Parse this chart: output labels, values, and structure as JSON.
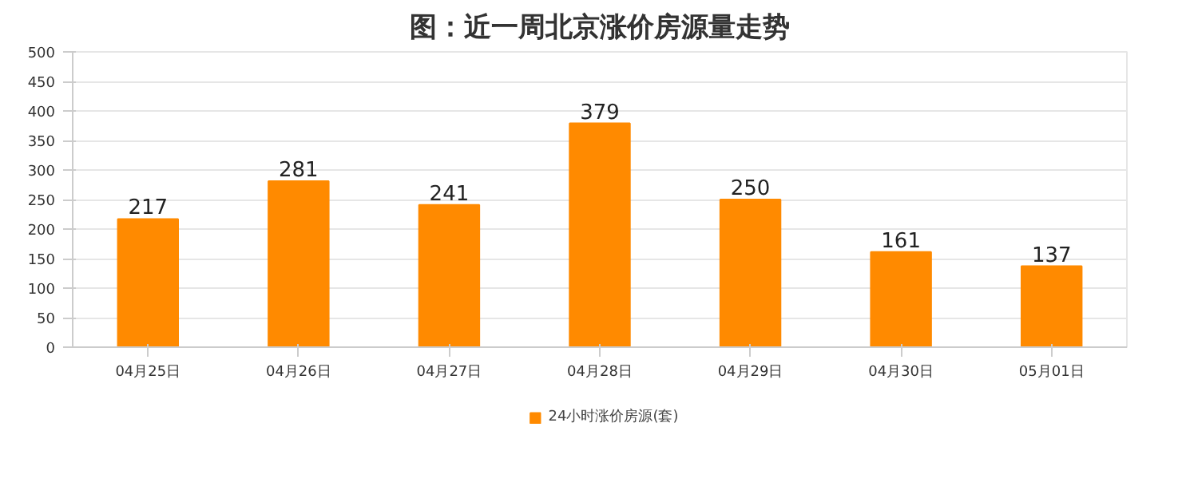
{
  "chart_data": {
    "type": "bar",
    "title": "图：近一周北京涨价房源量走势",
    "categories": [
      "04月25日",
      "04月26日",
      "04月27日",
      "04月28日",
      "04月29日",
      "04月30日",
      "05月01日"
    ],
    "series": [
      {
        "name": "24小时涨价房源(套)",
        "color": "#ff8a00",
        "values": [
          217,
          281,
          241,
          379,
          250,
          161,
          137
        ]
      }
    ],
    "ylim": [
      0,
      500
    ],
    "yticks": [
      0,
      50,
      100,
      150,
      200,
      250,
      300,
      350,
      400,
      450,
      500
    ],
    "grid": "y",
    "legend": "bottom",
    "data_labels": true
  }
}
